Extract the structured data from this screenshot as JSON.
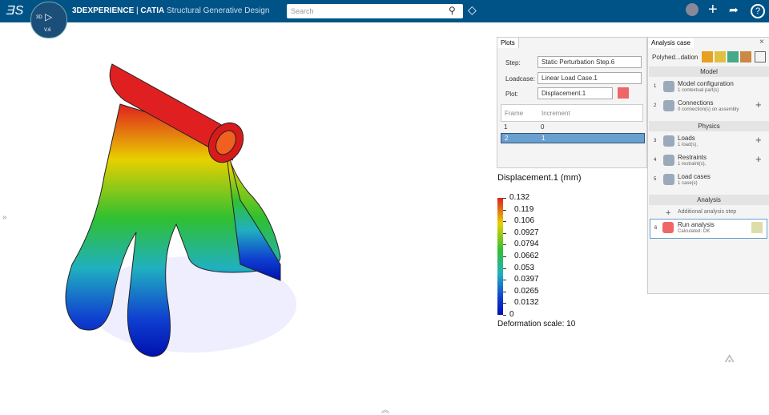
{
  "topbar": {
    "compass_top": "3D",
    "compass_bottom": "V.6",
    "brand": "3DEXPERIENCE",
    "app": "CATIA",
    "app_title": "Structural Generative Design",
    "search_placeholder": "Search"
  },
  "plots": {
    "tab": "Plots",
    "fields": [
      {
        "label": "Step:",
        "value": "Static Perturbation Step.6"
      },
      {
        "label": "Loadcase:",
        "value": "Linear Load Case.1"
      },
      {
        "label": "Plot:",
        "value": "Displacement.1"
      }
    ],
    "table": {
      "headers": [
        "Frame",
        "Increment"
      ],
      "rows": [
        [
          1,
          0
        ],
        [
          2,
          1
        ]
      ]
    }
  },
  "legend": {
    "title": "Displacement.1 (mm)",
    "values": [
      0.132,
      0.119,
      0.106,
      0.0927,
      0.0794,
      0.0662,
      0.053,
      0.0397,
      0.0265,
      0.0132,
      0
    ],
    "footer": "Deformation scale: 10"
  },
  "analysis": {
    "tab": "Analysis case",
    "case_name": "Polyhed...dation",
    "sections": [
      {
        "title": "Model",
        "items": [
          {
            "index": 1,
            "name": "Model configuration",
            "detail": "1 contextual part(s)"
          },
          {
            "index": 2,
            "name": "Connections",
            "detail": "0 connection(s) on assembly"
          }
        ]
      },
      {
        "title": "Physics",
        "items": [
          {
            "index": 3,
            "name": "Loads",
            "detail": "1 load(s),"
          },
          {
            "index": 4,
            "name": "Restraints",
            "detail": "1 restraint(s),"
          },
          {
            "index": 5,
            "name": "Load cases",
            "detail": "1 case(s)"
          }
        ]
      },
      {
        "title": "Analysis",
        "items": []
      }
    ],
    "additional_step": "Additional analysis step",
    "run": {
      "index": 6,
      "name": "Run analysis",
      "detail": "Calculated: OK"
    }
  }
}
